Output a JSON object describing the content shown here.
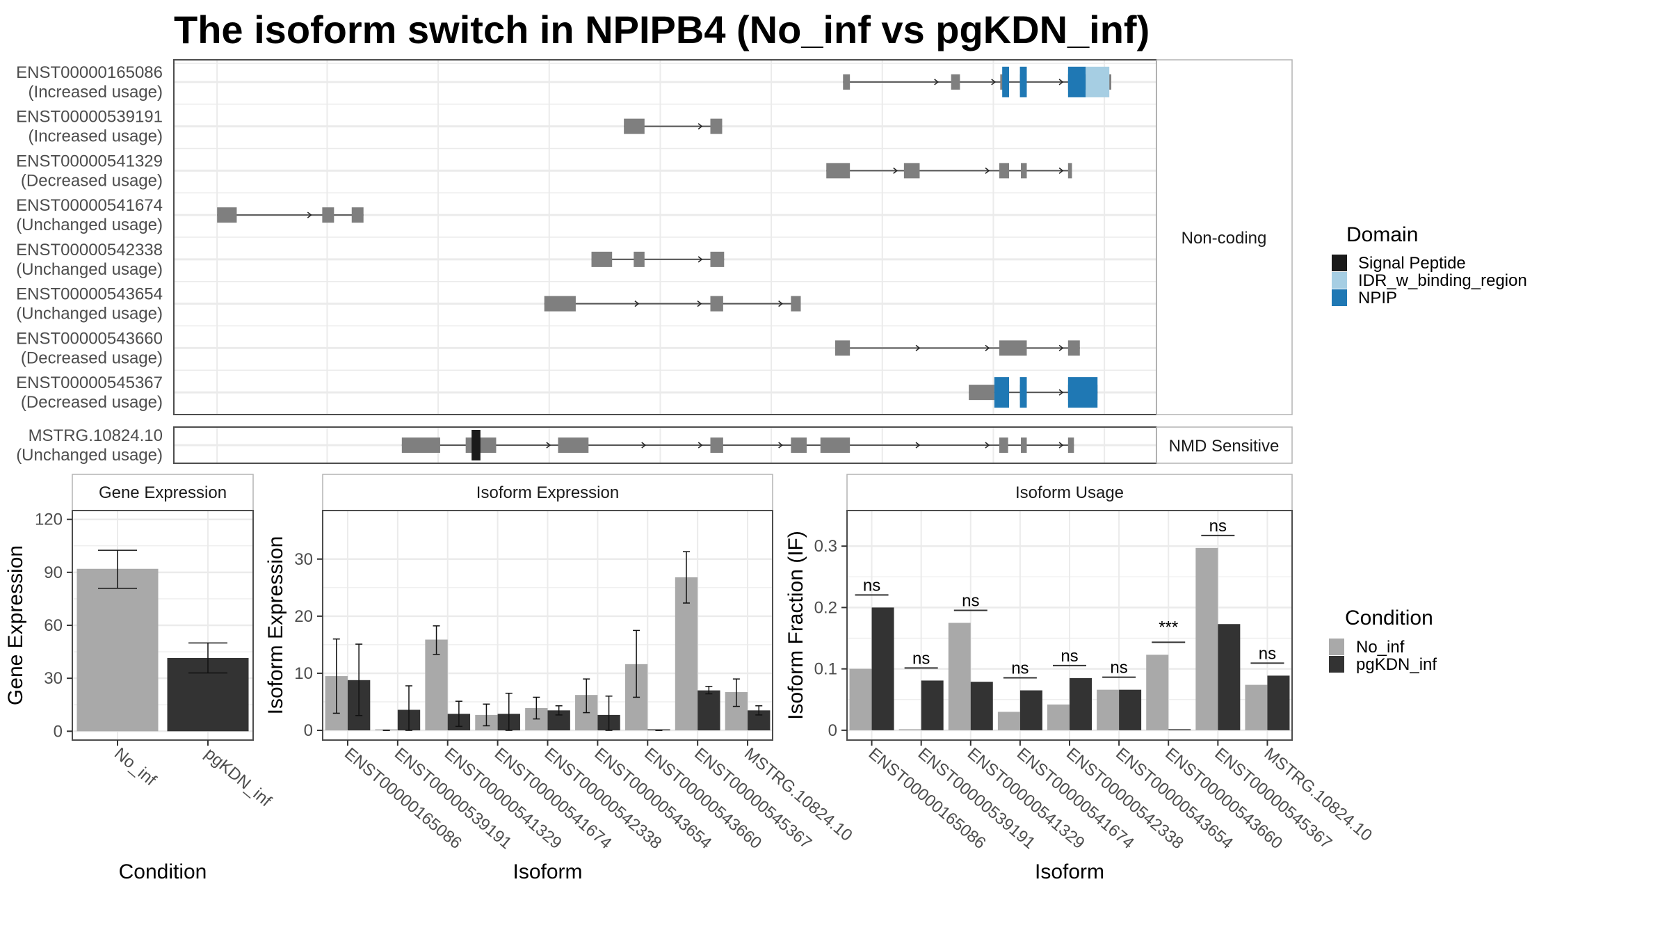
{
  "title": "The isoform switch in NPIPB4 (No_inf vs pgKDN_inf)",
  "colors": {
    "exon": "#7f7f7f",
    "intron": "#555555",
    "signal_peptide": "#1a1a1a",
    "idr": "#a6cee3",
    "npip": "#1f78b4",
    "no_inf": "#a9a9a9",
    "pgkdn_inf": "#333333",
    "grid": "#ebebeb",
    "panel_border": "#4d4d4d"
  },
  "transcripts": {
    "facets": [
      {
        "label": "Non-coding",
        "rows": [
          0,
          1,
          2,
          3,
          4,
          5,
          6,
          7
        ]
      },
      {
        "label": "NMD Sensitive",
        "rows": [
          8
        ]
      }
    ],
    "position_unit": "relative genomic position (% of plotted range)",
    "rows": [
      {
        "id": "ENST00000165086",
        "status": "(Increased usage)",
        "exons": [
          [
            68.1,
            68.8
          ],
          [
            79.1,
            80.0
          ],
          [
            84.1,
            84.8
          ],
          [
            86.1,
            86.8
          ],
          [
            91.0,
            95.4
          ]
        ],
        "domains": [
          {
            "type": "npip",
            "range": [
              84.3,
              85.0
            ]
          },
          {
            "type": "npip",
            "range": [
              86.1,
              86.8
            ]
          },
          {
            "type": "npip",
            "range": [
              91.0,
              92.8
            ]
          },
          {
            "type": "idr",
            "range": [
              92.8,
              95.2
            ]
          }
        ]
      },
      {
        "id": "ENST00000539191",
        "status": "(Increased usage)",
        "exons": [
          [
            45.8,
            47.9
          ],
          [
            54.6,
            55.8
          ]
        ],
        "domains": []
      },
      {
        "id": "ENST00000541329",
        "status": "(Decreased usage)",
        "exons": [
          [
            66.4,
            68.8
          ],
          [
            74.3,
            75.9
          ],
          [
            84.0,
            85.0
          ],
          [
            86.2,
            86.8
          ],
          [
            91.0,
            91.4
          ]
        ],
        "domains": []
      },
      {
        "id": "ENST00000541674",
        "status": "(Unchanged usage)",
        "exons": [
          [
            4.4,
            6.4
          ],
          [
            15.1,
            16.3
          ],
          [
            18.1,
            19.3
          ]
        ],
        "domains": []
      },
      {
        "id": "ENST00000542338",
        "status": "(Unchanged usage)",
        "exons": [
          [
            42.5,
            44.6
          ],
          [
            46.8,
            47.9
          ],
          [
            54.6,
            56.0
          ]
        ],
        "domains": []
      },
      {
        "id": "ENST00000543654",
        "status": "(Unchanged usage)",
        "exons": [
          [
            37.7,
            40.9
          ],
          [
            54.6,
            55.9
          ],
          [
            62.8,
            63.8
          ]
        ],
        "domains": []
      },
      {
        "id": "ENST00000543660",
        "status": "(Decreased usage)",
        "exons": [
          [
            67.3,
            68.8
          ],
          [
            84.0,
            86.8
          ],
          [
            91.0,
            92.2
          ]
        ],
        "domains": []
      },
      {
        "id": "ENST00000545367",
        "status": "(Decreased usage)",
        "exons": [
          [
            80.9,
            83.5
          ],
          [
            83.5,
            85.0
          ],
          [
            86.1,
            86.8
          ],
          [
            91.0,
            94.0
          ]
        ],
        "domains": [
          {
            "type": "npip",
            "range": [
              83.5,
              85.0
            ]
          },
          {
            "type": "npip",
            "range": [
              86.1,
              86.8
            ]
          },
          {
            "type": "npip",
            "range": [
              91.0,
              94.0
            ]
          }
        ]
      },
      {
        "id": "MSTRG.10824.10",
        "status": "(Unchanged usage)",
        "exons": [
          [
            23.2,
            27.1
          ],
          [
            29.7,
            32.8
          ],
          [
            39.1,
            42.2
          ],
          [
            54.6,
            55.9
          ],
          [
            62.8,
            64.4
          ],
          [
            65.8,
            68.8
          ],
          [
            84.0,
            84.9
          ],
          [
            86.2,
            86.8
          ],
          [
            91.0,
            91.6
          ]
        ],
        "domains": [
          {
            "type": "signal_peptide",
            "range": [
              30.3,
              31.2
            ]
          }
        ]
      }
    ]
  },
  "domain_legend": {
    "title": "Domain",
    "items": [
      {
        "label": "Signal Peptide",
        "key": "signal_peptide"
      },
      {
        "label": "IDR_w_binding_region",
        "key": "idr"
      },
      {
        "label": "NPIP",
        "key": "npip"
      }
    ]
  },
  "condition_legend": {
    "title": "Condition",
    "items": [
      {
        "label": "No_inf",
        "key": "no_inf"
      },
      {
        "label": "pgKDN_inf",
        "key": "pgkdn_inf"
      }
    ]
  },
  "chart_data": [
    {
      "type": "bar",
      "title": "Gene Expression",
      "xlabel": "Condition",
      "ylabel": "Gene Expression",
      "categories": [
        "No_inf",
        "pgKDN_inf"
      ],
      "values": [
        92,
        41.5
      ],
      "errors": [
        [
          81,
          102.5
        ],
        [
          33,
          50
        ]
      ],
      "ylim": [
        -5,
        125
      ],
      "yticks": [
        0,
        30,
        60,
        90,
        120
      ],
      "grid": true
    },
    {
      "type": "bar",
      "title": "Isoform Expression",
      "xlabel": "Isoform",
      "ylabel": "Isoform Expression",
      "categories": [
        "ENST00000165086",
        "ENST00000539191",
        "ENST00000541329",
        "ENST00000541674",
        "ENST00000542338",
        "ENST00000543654",
        "ENST00000543660",
        "ENST00000545367",
        "MSTRG.10824.10"
      ],
      "series": [
        {
          "name": "No_inf",
          "values": [
            9.5,
            0,
            15.9,
            2.7,
            3.9,
            6.2,
            11.6,
            26.8,
            6.7
          ],
          "errors": [
            [
              3.0,
              16.0
            ],
            [
              0,
              0
            ],
            [
              13.3,
              18.3
            ],
            [
              0.8,
              4.6
            ],
            [
              2.0,
              5.8
            ],
            [
              3.1,
              9.0
            ],
            [
              5.8,
              17.5
            ],
            [
              22.3,
              31.3
            ],
            [
              4.2,
              9.0
            ]
          ]
        },
        {
          "name": "pgKDN_inf",
          "values": [
            8.8,
            3.6,
            2.9,
            2.9,
            3.5,
            2.7,
            0,
            7.0,
            3.5
          ],
          "errors": [
            [
              2.6,
              15.1
            ],
            [
              0,
              7.8
            ],
            [
              0.7,
              5.1
            ],
            [
              0,
              6.5
            ],
            [
              2.7,
              4.3
            ],
            [
              0,
              6.0
            ],
            [
              0,
              0
            ],
            [
              6.4,
              7.7
            ],
            [
              2.7,
              4.3
            ]
          ]
        }
      ],
      "ylim": [
        -1.7,
        38.5
      ],
      "yticks": [
        0,
        10,
        20,
        30
      ],
      "grid": true
    },
    {
      "type": "bar",
      "title": "Isoform Usage",
      "xlabel": "Isoform",
      "ylabel": "Isoform Fraction (IF)",
      "categories": [
        "ENST00000165086",
        "ENST00000539191",
        "ENST00000541329",
        "ENST00000541674",
        "ENST00000542338",
        "ENST00000543654",
        "ENST00000543660",
        "ENST00000545367",
        "MSTRG.10824.10"
      ],
      "series": [
        {
          "name": "No_inf",
          "values": [
            0.1,
            0,
            0.175,
            0.03,
            0.042,
            0.066,
            0.123,
            0.297,
            0.074
          ]
        },
        {
          "name": "pgKDN_inf",
          "values": [
            0.2,
            0.081,
            0.079,
            0.065,
            0.085,
            0.066,
            0,
            0.173,
            0.089
          ]
        }
      ],
      "significance": [
        "ns",
        "ns",
        "ns",
        "ns",
        "ns",
        "ns",
        "***",
        "ns",
        "ns"
      ],
      "ylim": [
        -0.016,
        0.358
      ],
      "yticks": [
        0.0,
        0.1,
        0.2,
        0.3
      ],
      "grid": true
    }
  ]
}
